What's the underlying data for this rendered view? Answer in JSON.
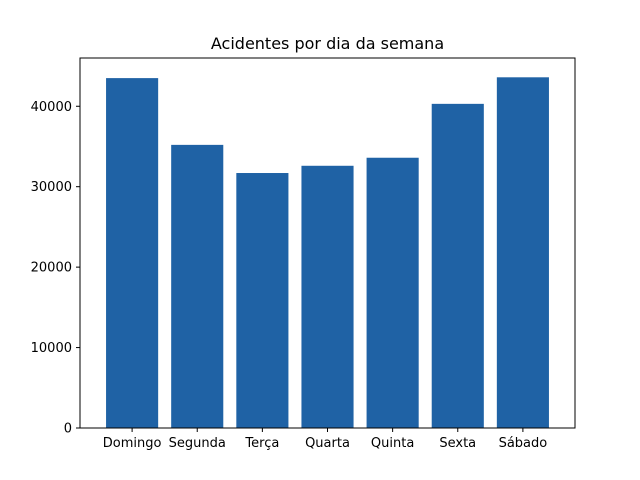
{
  "chart_data": {
    "type": "bar",
    "title": "Acidentes por dia da semana",
    "xlabel": "",
    "ylabel": "",
    "categories": [
      "Domingo",
      "Segunda",
      "Terça",
      "Quarta",
      "Quinta",
      "Sexta",
      "Sábado"
    ],
    "values": [
      43500,
      35200,
      31700,
      32600,
      33600,
      40300,
      43600
    ],
    "ylim": [
      0,
      46000
    ],
    "yticks": [
      0,
      10000,
      20000,
      30000,
      40000
    ],
    "ytick_labels": [
      "0",
      "10000",
      "20000",
      "30000",
      "40000"
    ],
    "bar_color": "#1f62a5",
    "grid": false,
    "legend": "none"
  }
}
